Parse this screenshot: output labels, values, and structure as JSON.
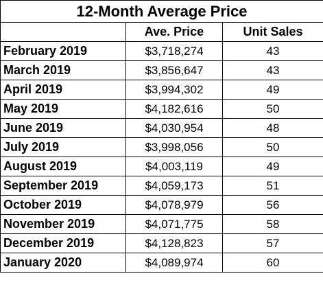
{
  "table": {
    "title": "12-Month Average Price",
    "headers": [
      "",
      "Ave. Price",
      "Unit Sales"
    ],
    "rows": [
      {
        "month": "February 2019",
        "price": "$3,718,274",
        "sales": "43"
      },
      {
        "month": "March 2019",
        "price": "$3,856,647",
        "sales": "43"
      },
      {
        "month": "April 2019",
        "price": "$3,994,302",
        "sales": "49"
      },
      {
        "month": "May 2019",
        "price": "$4,182,616",
        "sales": "50"
      },
      {
        "month": "June 2019",
        "price": "$4,030,954",
        "sales": "48"
      },
      {
        "month": "July 2019",
        "price": "$3,998,056",
        "sales": "50"
      },
      {
        "month": "August 2019",
        "price": "$4,003,119",
        "sales": "49"
      },
      {
        "month": "September 2019",
        "price": "$4,059,173",
        "sales": "51"
      },
      {
        "month": "October 2019",
        "price": "$4,078,979",
        "sales": "56"
      },
      {
        "month": "November 2019",
        "price": "$4,071,775",
        "sales": "58"
      },
      {
        "month": "December 2019",
        "price": "$4,128,823",
        "sales": "57"
      },
      {
        "month": "January 2020",
        "price": "$4,089,974",
        "sales": "60"
      }
    ]
  }
}
